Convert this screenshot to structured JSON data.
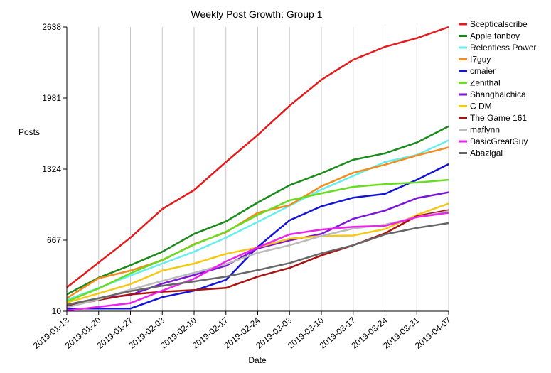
{
  "chart_data": {
    "type": "line",
    "title": "Weekly Post Growth: Group 1",
    "xlabel": "Date",
    "ylabel": "Posts",
    "x": [
      "2019-01-13",
      "2019-01-20",
      "2019-01-27",
      "2019-02-03",
      "2019-02-10",
      "2019-02-17",
      "2019-02-24",
      "2019-03-03",
      "2019-03-10",
      "2019-03-17",
      "2019-03-24",
      "2019-03-31",
      "2019-04-07"
    ],
    "yticks": [
      10,
      667,
      1324,
      1981,
      2638
    ],
    "ylim": [
      10,
      2638
    ],
    "grid": "vertical",
    "legend_position": "right",
    "series": [
      {
        "name": "Scepticalscribe",
        "color": "#e41a1c",
        "values": [
          230,
          460,
          690,
          955,
          1130,
          1390,
          1640,
          1910,
          2150,
          2335,
          2455,
          2535,
          2638
        ]
      },
      {
        "name": "Apple fanboy",
        "color": "#1a8a1a",
        "values": [
          165,
          320,
          435,
          560,
          725,
          840,
          1015,
          1175,
          1285,
          1410,
          1470,
          1570,
          1720
        ]
      },
      {
        "name": "Relentless Power",
        "color": "#66eeee",
        "values": [
          115,
          225,
          340,
          450,
          560,
          690,
          835,
          985,
          1135,
          1260,
          1390,
          1455,
          1590
        ]
      },
      {
        "name": "I7guy",
        "color": "#f28c1c",
        "values": [
          130,
          315,
          385,
          480,
          630,
          740,
          920,
          990,
          1165,
          1290,
          1365,
          1450,
          1525
        ]
      },
      {
        "name": "cmaier",
        "color": "#1414d8",
        "values": [
          35,
          35,
          35,
          140,
          200,
          300,
          605,
          850,
          980,
          1060,
          1095,
          1225,
          1370
        ]
      },
      {
        "name": "Zenithal",
        "color": "#66dd22",
        "values": [
          100,
          220,
          360,
          485,
          625,
          745,
          900,
          1035,
          1100,
          1160,
          1185,
          1200,
          1225
        ]
      },
      {
        "name": "Shanghaichica",
        "color": "#7a16d8",
        "values": [
          60,
          130,
          160,
          265,
          345,
          430,
          590,
          665,
          725,
          865,
          940,
          1055,
          1110
        ]
      },
      {
        "name": "C DM",
        "color": "#f5c814",
        "values": [
          90,
          175,
          260,
          385,
          450,
          540,
          600,
          680,
          705,
          710,
          770,
          900,
          1005
        ]
      },
      {
        "name": "The Game 161",
        "color": "#aa1111",
        "values": [
          55,
          115,
          165,
          190,
          205,
          225,
          330,
          410,
          525,
          620,
          730,
          890,
          945
        ]
      },
      {
        "name": "maflynn",
        "color": "#bbbbbb",
        "values": [
          45,
          120,
          210,
          290,
          365,
          445,
          550,
          620,
          705,
          775,
          810,
          880,
          935
        ]
      },
      {
        "name": "BasicGreatGuy",
        "color": "#ee22ee",
        "values": [
          15,
          50,
          85,
          200,
          310,
          470,
          600,
          720,
          765,
          790,
          800,
          880,
          920
        ]
      },
      {
        "name": "Abazigal",
        "color": "#666666",
        "values": [
          70,
          130,
          195,
          245,
          285,
          330,
          390,
          455,
          545,
          620,
          720,
          780,
          825
        ]
      }
    ]
  }
}
